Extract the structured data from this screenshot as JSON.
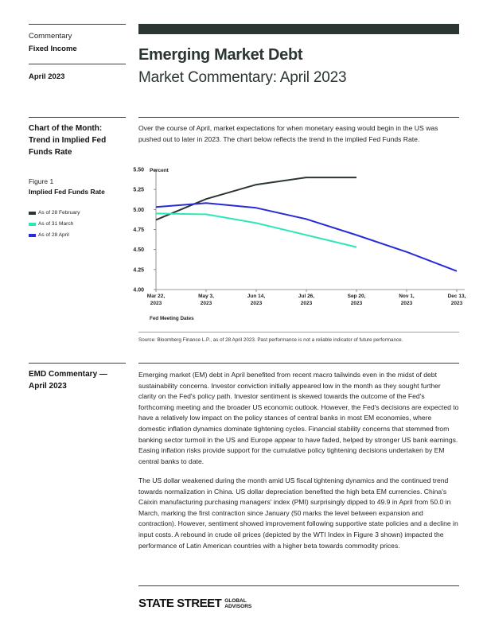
{
  "sidebar": {
    "category": "Commentary",
    "subcategory": "Fixed Income",
    "date": "April 2023"
  },
  "header": {
    "title": "Emerging Market Debt",
    "subtitle": "Market Commentary: April 2023"
  },
  "chart_section": {
    "heading": "Chart of the Month: Trend in Implied Fed Funds Rate",
    "intro": "Over the course of April, market expectations for when monetary easing would begin in the US was pushed out to later in 2023. The chart below reflects the trend in the implied Fed Funds Rate.",
    "figure_label": "Figure 1",
    "figure_title": "Implied Fed Funds Rate",
    "source": "Source: Bloomberg Finance L.P., as of 28 April 2023. Past performance is not a reliable indicator of future performance."
  },
  "chart_data": {
    "type": "line",
    "ylabel": "Percent",
    "xlabel": "Fed Meeting Dates",
    "ylim": [
      4.0,
      5.5
    ],
    "yticks": [
      "5.50",
      "5.25",
      "5.00",
      "4.75",
      "4.50",
      "4.25",
      "4.00"
    ],
    "categories": [
      "Mar 22, 2023",
      "May 3, 2023",
      "Jun 14, 2023",
      "Jul 26, 2023",
      "Sep 20, 2023",
      "Nov 1, 2023",
      "Dec 13, 2023"
    ],
    "category_lines": [
      [
        "Mar 22,",
        "2023"
      ],
      [
        "May 3,",
        "2023"
      ],
      [
        "Jun 14,",
        "2023"
      ],
      [
        "Jul 26,",
        "2023"
      ],
      [
        "Sep 20,",
        "2023"
      ],
      [
        "Nov 1,",
        "2023"
      ],
      [
        "Dec 13,",
        "2023"
      ]
    ],
    "legend_position": "left",
    "grid": false,
    "series": [
      {
        "name": "As of 28 February",
        "color": "#2b3532",
        "values": [
          4.87,
          5.13,
          5.31,
          5.4,
          5.4,
          null,
          null
        ]
      },
      {
        "name": "As of 31 March",
        "color": "#2ee6b6",
        "values": [
          4.95,
          4.94,
          4.83,
          4.68,
          4.53,
          null,
          null
        ]
      },
      {
        "name": "As of 28 April",
        "color": "#2a2ad8",
        "values": [
          5.03,
          5.08,
          5.02,
          4.88,
          4.68,
          4.47,
          4.23
        ]
      }
    ]
  },
  "commentary": {
    "heading": "EMD Commentary — April 2023",
    "paragraph1": "Emerging market (EM) debt in April benefited from recent macro tailwinds even in the midst of debt sustainability concerns. Investor conviction initially appeared low in the month as they sought further clarity on the Fed's policy path. Investor sentiment is skewed towards the outcome of the Fed's forthcoming meeting and the broader US economic outlook. However, the Fed's decisions are expected to have a relatively low impact on the policy stances of central banks in most EM economies, where domestic inflation dynamics dominate tightening cycles. Financial stability concerns that stemmed from banking sector turmoil in the US and Europe appear to have faded, helped by stronger US bank earnings. Easing inflation risks provide support for the cumulative policy tightening decisions undertaken by EM central banks to date.",
    "paragraph2": "The US dollar weakened during the month amid US fiscal tightening dynamics and the continued trend towards normalization in China. US dollar depreciation benefited the high beta EM currencies. China's Caixin manufacturing purchasing managers' index (PMI) surprisingly dipped to 49.9 in April from 50.0 in March, marking the first contraction since January (50 marks the level between expansion and contraction). However, sentiment showed improvement following supportive state policies and a decline in input costs. A rebound in crude oil prices (depicted by the WTI Index in Figure 3 shown) impacted the performance of Latin American countries with a higher beta towards commodity prices."
  },
  "footer": {
    "logo_main": "STATE STREET",
    "logo_sub_line1": "GLOBAL",
    "logo_sub_line2": "ADVISORS"
  }
}
